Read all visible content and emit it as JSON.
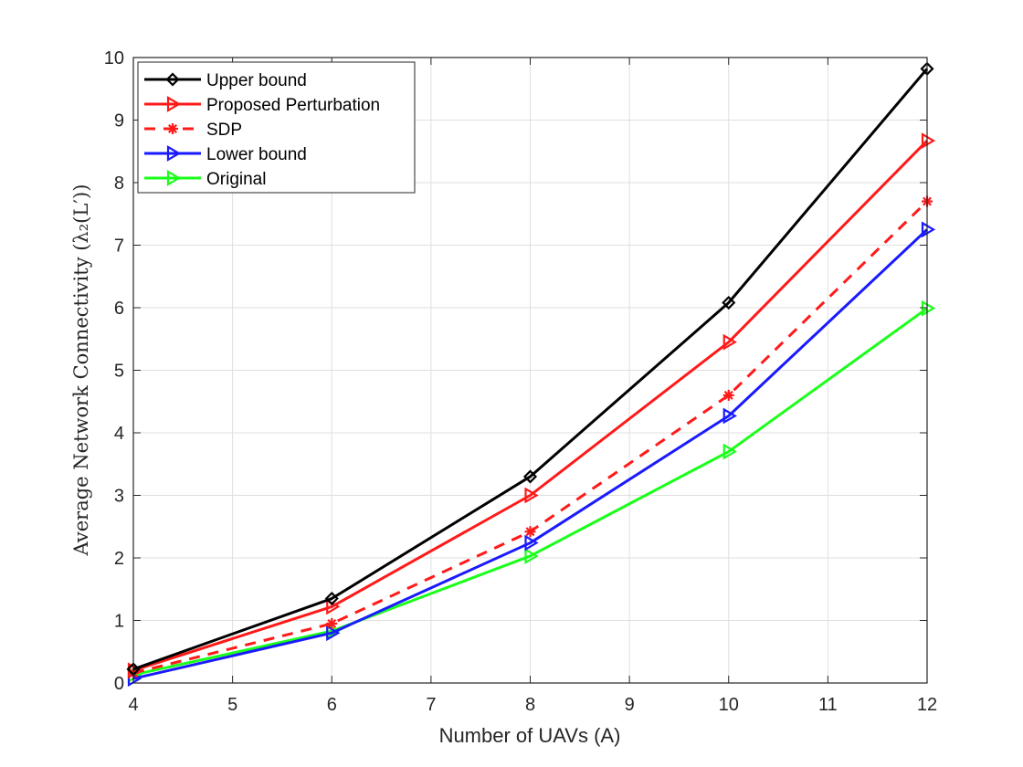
{
  "chart_data": {
    "type": "line",
    "title": "",
    "xlabel": "Number of UAVs (A)",
    "ylabel": "Average Network Connectivity (λ₂(L′))",
    "xlim": [
      4,
      12
    ],
    "ylim": [
      0,
      10
    ],
    "xticks": [
      "4",
      "5",
      "6",
      "7",
      "8",
      "9",
      "10",
      "11",
      "12"
    ],
    "yticks": [
      "0",
      "1",
      "2",
      "3",
      "4",
      "5",
      "6",
      "7",
      "8",
      "9",
      "10"
    ],
    "grid": true,
    "legend_position": "top-left",
    "x": [
      4,
      6,
      8,
      10,
      12
    ],
    "series": [
      {
        "name": "Upper bound",
        "color": "#000000",
        "dash": "solid",
        "marker": "diamond",
        "values": [
          0.22,
          1.35,
          3.3,
          6.08,
          9.82
        ]
      },
      {
        "name": "Proposed Perturbation",
        "color": "#ff1a1a",
        "dash": "solid",
        "marker": "triangle-right",
        "values": [
          0.2,
          1.22,
          3.0,
          5.45,
          8.67
        ]
      },
      {
        "name": "SDP",
        "color": "#ff1a1a",
        "dash": "dashed",
        "marker": "asterisk",
        "values": [
          0.16,
          0.95,
          2.42,
          4.6,
          7.7
        ]
      },
      {
        "name": "Lower bound",
        "color": "#1a1aff",
        "dash": "solid",
        "marker": "triangle-right",
        "values": [
          0.07,
          0.8,
          2.24,
          4.27,
          7.25
        ]
      },
      {
        "name": "Original",
        "color": "#1aff1a",
        "dash": "solid",
        "marker": "triangle-right",
        "values": [
          0.13,
          0.83,
          2.03,
          3.7,
          5.99
        ]
      }
    ]
  }
}
